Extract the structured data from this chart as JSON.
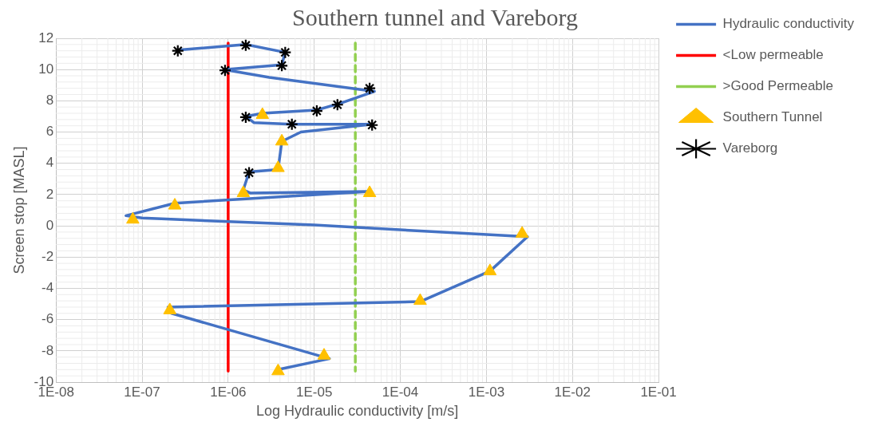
{
  "chart_data": {
    "type": "scatter",
    "title": "Southern tunnel and Vareborg",
    "xlabel": "Log Hydraulic conductivity [m/s]",
    "ylabel": "Screen stop [MASL]",
    "log": "x",
    "grid": true,
    "legend": "right",
    "xlim": [
      1e-08,
      0.1
    ],
    "xticks": [
      {
        "value": 1e-08,
        "label": "1E-08"
      },
      {
        "value": 1e-07,
        "label": "1E-07"
      },
      {
        "value": 1e-06,
        "label": "1E-06"
      },
      {
        "value": 1e-05,
        "label": "1E-05"
      },
      {
        "value": 0.0001,
        "label": "1E-04"
      },
      {
        "value": 0.001,
        "label": "1E-03"
      },
      {
        "value": 0.01,
        "label": "1E-02"
      },
      {
        "value": 0.1,
        "label": "1E-01"
      }
    ],
    "ylim": [
      -10,
      12
    ],
    "yticks": [
      -10,
      -8,
      -6,
      -4,
      -2,
      0,
      2,
      4,
      6,
      8,
      10,
      12
    ],
    "series": [
      {
        "name": "Hydraulic conductivity",
        "type": "line",
        "color": "#4472c4",
        "marker": "none",
        "line_style": "solid",
        "x": [
          2.6e-07,
          1.6e-06,
          4.6e-06,
          4.2e-06,
          9e-07,
          3e-06,
          5e-05,
          1.9e-05,
          1.05e-05,
          2.5e-06,
          1.6e-06,
          2e-06,
          5.5e-06,
          4.7e-05,
          7e-06,
          4.2e-06,
          3.8e-06,
          1.75e-06,
          1.5e-06,
          1.8e-06,
          4.4e-05,
          2.4e-07,
          6.5e-08,
          1e-07,
          1e-05,
          0.003,
          0.0011,
          0.00017,
          2e-07,
          2.2e-07,
          1.5e-05,
          3.8e-06
        ],
        "values": [
          11.25,
          11.6,
          11.1,
          10.3,
          10,
          9.5,
          8.6,
          7.8,
          7.4,
          7.2,
          7,
          6.6,
          6.5,
          6.5,
          6,
          5.4,
          3.6,
          3.45,
          2.3,
          2.1,
          2.2,
          1.45,
          0.65,
          0.5,
          0.05,
          -0.7,
          -2.9,
          -4.85,
          -5.2,
          -5.6,
          -8.5,
          -9.2
        ]
      },
      {
        "name": "<Low permeable",
        "type": "line",
        "color": "#ff0000",
        "marker": "none",
        "line_style": "solid",
        "x": [
          1e-06,
          1e-06
        ],
        "values": [
          11.7,
          -9.3
        ]
      },
      {
        "name": ">Good Permeable",
        "type": "line",
        "color": "#92d050",
        "marker": "none",
        "line_style": "dashed",
        "x": [
          3e-05,
          3e-05
        ],
        "values": [
          11.7,
          -9.3
        ]
      },
      {
        "name": "Southern Tunnel",
        "color": "#ffc000",
        "marker": "triangle",
        "x": [
          2.5e-06,
          4.2e-06,
          3.8e-06,
          1.5e-06,
          4.4e-05,
          2.4e-07,
          7.8e-08,
          0.0026,
          0.0011,
          0.00017,
          2.1e-07,
          1.3e-05,
          3.8e-06
        ],
        "values": [
          7.1,
          5.4,
          3.7,
          2.1,
          2.1,
          1.3,
          0.4,
          -0.5,
          -2.9,
          -4.8,
          -5.4,
          -8.3,
          -9.3
        ]
      },
      {
        "name": "Vareborg",
        "color": "#000000",
        "marker": "cross",
        "x": [
          2.6e-07,
          1.6e-06,
          4.6e-06,
          4.2e-06,
          9.2e-07,
          4.4e-05,
          1.86e-05,
          1.07e-05,
          1.6e-06,
          5.5e-06,
          4.7e-05,
          1.75e-06
        ],
        "values": [
          11.2,
          11.55,
          11.1,
          10.25,
          9.95,
          8.8,
          7.75,
          7.35,
          6.95,
          6.5,
          6.45,
          3.4
        ]
      }
    ]
  }
}
